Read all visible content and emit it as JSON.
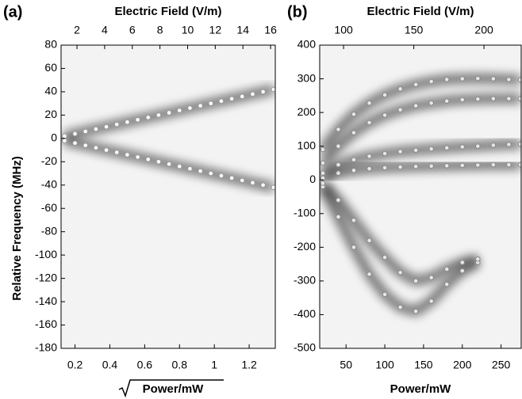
{
  "chart_data": [
    {
      "type": "scatter",
      "panel_label": "(a)",
      "xlabel": "Power/mW",
      "x2label": "Electric Field (V/m)",
      "ylabel": "Relative Frequency (MHz)",
      "xlim": [
        0.12,
        1.35
      ],
      "xticks": [
        0.2,
        0.4,
        0.6,
        0.8,
        1.0,
        1.2
      ],
      "x2lim": [
        0.85,
        16.34
      ],
      "x2ticks": [
        2,
        4,
        6,
        8,
        10,
        12,
        14,
        16
      ],
      "ylim": [
        -180,
        80
      ],
      "yticks": [
        -180,
        -160,
        -140,
        -120,
        -100,
        -80,
        -60,
        -40,
        -20,
        0,
        20,
        40,
        60,
        80
      ],
      "x": [
        0.14,
        0.2,
        0.26,
        0.32,
        0.38,
        0.44,
        0.5,
        0.56,
        0.62,
        0.68,
        0.74,
        0.8,
        0.86,
        0.92,
        0.98,
        1.04,
        1.1,
        1.16,
        1.22,
        1.28,
        1.34
      ],
      "series": [
        {
          "color": "#ffffff",
          "values": [
            2,
            4,
            6,
            8,
            10,
            12,
            14,
            16,
            18,
            20,
            22,
            24,
            26,
            28,
            30,
            32,
            34,
            36,
            38,
            40,
            42
          ]
        },
        {
          "color": "#ffffff",
          "values": [
            -2,
            -4,
            -6,
            -8,
            -10,
            -12,
            -14,
            -16,
            -18,
            -20,
            -22,
            -24,
            -26,
            -28,
            -30,
            -32,
            -34,
            -36,
            -38,
            -40,
            -42
          ]
        }
      ]
    },
    {
      "type": "scatter",
      "panel_label": "(b)",
      "xlabel": "Power/mW",
      "x2label": "Electric Field (V/m)",
      "xlim": [
        16,
        276
      ],
      "xticks": [
        50,
        100,
        150,
        200,
        250
      ],
      "x2lim": [
        83,
        226.5
      ],
      "x2ticks": [
        100,
        150,
        200
      ],
      "ylim": [
        -500,
        400
      ],
      "yticks": [
        -500,
        -400,
        -300,
        -200,
        -100,
        0,
        100,
        200,
        300,
        400
      ],
      "x": [
        20,
        40,
        60,
        80,
        100,
        120,
        140,
        160,
        180,
        200,
        220,
        240,
        260,
        275
      ],
      "series": [
        {
          "color": "#888888",
          "values": [
            90,
            150,
            195,
            228,
            252,
            270,
            283,
            292,
            298,
            300,
            301,
            300,
            298,
            297
          ]
        },
        {
          "color": "#888888",
          "values": [
            50,
            100,
            140,
            170,
            192,
            208,
            220,
            228,
            234,
            238,
            240,
            241,
            241,
            241
          ]
        },
        {
          "color": "#888888",
          "values": [
            20,
            45,
            60,
            70,
            78,
            84,
            88,
            92,
            95,
            98,
            100,
            103,
            105,
            106
          ]
        },
        {
          "color": "#888888",
          "values": [
            5,
            20,
            28,
            33,
            36,
            38,
            40,
            41,
            42,
            43,
            44,
            45,
            45,
            45
          ]
        },
        {
          "color": "#888888",
          "values": [
            -20,
            -110,
            -200,
            -280,
            -340,
            -378,
            -390,
            -360,
            -310,
            -270,
            -245,
            null,
            null,
            null
          ]
        },
        {
          "color": "#888888",
          "values": [
            -10,
            -60,
            -120,
            -180,
            -230,
            -275,
            -300,
            -290,
            -265,
            -245,
            -235,
            null,
            null,
            null
          ]
        }
      ]
    }
  ]
}
